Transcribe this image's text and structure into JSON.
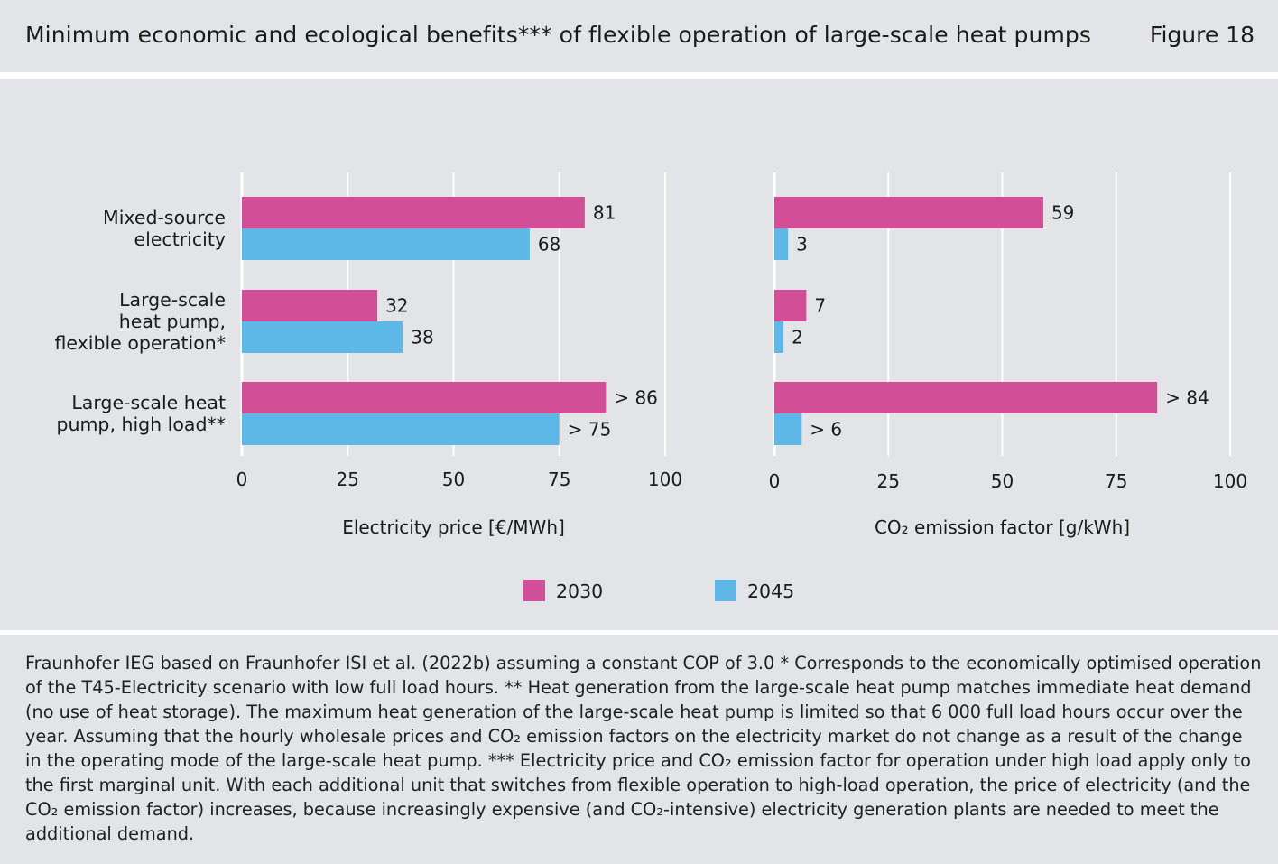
{
  "header": {
    "title": "Minimum economic and ecological benefits*** of flexible operation of large-scale heat pumps",
    "figure_label": "Figure 18"
  },
  "colors": {
    "series_2030": "#d24e97",
    "series_2045": "#5db8e8",
    "panel_bg": "#e3e4e8",
    "gridline": "#ffffff"
  },
  "chart_data": [
    {
      "type": "bar",
      "orientation": "horizontal",
      "xlabel": "Electricity price [€/MWh]",
      "xlim": [
        0,
        100
      ],
      "ticks": [
        "0",
        "25",
        "50",
        "75",
        "100"
      ],
      "tick_values": [
        0,
        25,
        50,
        75,
        100
      ],
      "categories": [
        [
          "Mixed-source",
          "electricity"
        ],
        [
          "Large-scale",
          "heat pump,",
          "flexible operation*"
        ],
        [
          "Large-scale heat",
          "pump, high load**"
        ]
      ],
      "series": [
        {
          "name": "2030",
          "values": [
            81,
            32,
            86
          ],
          "labels": [
            "81",
            "32",
            "> 86"
          ]
        },
        {
          "name": "2045",
          "values": [
            68,
            38,
            75
          ],
          "labels": [
            "68",
            "38",
            "> 75"
          ]
        }
      ]
    },
    {
      "type": "bar",
      "orientation": "horizontal",
      "xlabel": "CO₂ emission factor [g/kWh]",
      "xlim": [
        0,
        100
      ],
      "ticks": [
        "0",
        "25",
        "50",
        "75",
        "100"
      ],
      "tick_values": [
        0,
        25,
        50,
        75,
        100
      ],
      "categories": [
        [
          "Mixed-source",
          "electricity"
        ],
        [
          "Large-scale",
          "heat pump,",
          "flexible operation*"
        ],
        [
          "Large-scale heat",
          "pump, high load**"
        ]
      ],
      "series": [
        {
          "name": "2030",
          "values": [
            59,
            7,
            84
          ],
          "labels": [
            "59",
            "7",
            "> 84"
          ]
        },
        {
          "name": "2045",
          "values": [
            3,
            2,
            6
          ],
          "labels": [
            "3",
            "2",
            "> 6"
          ]
        }
      ]
    }
  ],
  "legend": [
    {
      "label": "2030"
    },
    {
      "label": "2045"
    }
  ],
  "footnote": "Fraunhofer IEG based on Fraunhofer ISI et al. (2022b) assuming a constant COP of 3.0 * Corresponds to the economically optimised operation of the T45-Electricity scenario with low full load hours. ** Heat generation from the large-scale heat pump matches immediate heat demand (no use of heat storage). The maximum heat generation of the large-scale heat pump is limited so that 6 000 full load hours occur over the year. Assuming that the hourly wholesale prices and CO₂ emission factors on the electricity market do not change as a result of the change in the operating mode of the large-scale heat pump. *** Electricity price and CO₂ emission factor for operation under high load apply only to the first marginal unit. With each additional unit that switches from flexible operation to high-load operation, the price of electricity (and the CO₂ emission factor) increases, because increasingly expensive (and CO₂-intensive) electricity generation plants are needed to meet the additional demand."
}
